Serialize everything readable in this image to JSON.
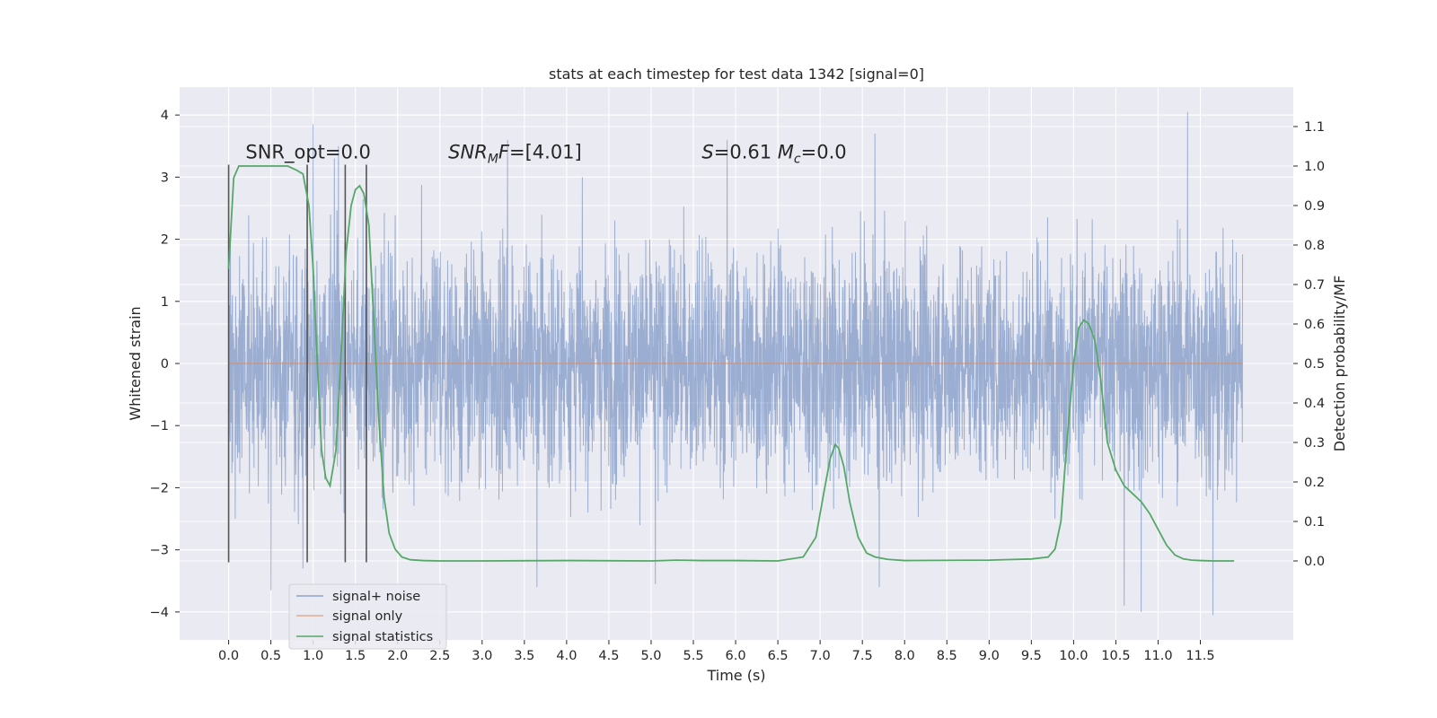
{
  "chart_data": {
    "type": "line",
    "title": "stats at each timestep for test data 1342 [signal=0]",
    "xlabel": "Time (s)",
    "ylabel": "Whitened strain",
    "y2label": "Detection probability/MF",
    "xlim": [
      -0.58,
      12.6
    ],
    "ylim": [
      -4.45,
      4.45
    ],
    "y2lim": [
      -0.2,
      1.2
    ],
    "x_ticks": [
      "0.0",
      "0.5",
      "1.0",
      "1.5",
      "2.0",
      "2.5",
      "3.0",
      "3.5",
      "4.0",
      "4.5",
      "5.0",
      "5.5",
      "6.0",
      "6.5",
      "7.0",
      "7.5",
      "8.0",
      "8.5",
      "9.0",
      "9.5",
      "10.0",
      "10.5",
      "11.0",
      "11.5"
    ],
    "y_ticks": [
      -4,
      -3,
      -2,
      -1,
      0,
      1,
      2,
      3,
      4
    ],
    "y_tick_labels": [
      "−4",
      "−3",
      "−2",
      "−1",
      "0",
      "1",
      "2",
      "3",
      "4"
    ],
    "y2_ticks": [
      0.0,
      0.1,
      0.2,
      0.3,
      0.4,
      0.5,
      0.6,
      0.7,
      0.8,
      0.9,
      1.0,
      1.1
    ],
    "y2_tick_labels": [
      "0.0",
      "0.1",
      "0.2",
      "0.3",
      "0.4",
      "0.5",
      "0.6",
      "0.7",
      "0.8",
      "0.9",
      "1.0",
      "1.1"
    ],
    "grid": true,
    "legend_position": "lower-left",
    "series": [
      {
        "name": "signal+ noise",
        "color": "#4c72b0",
        "axis": "left",
        "x_range": [
          0.0,
          12.0
        ],
        "typical_abs_max": 2.2,
        "peaks": [
          {
            "x": 1.0,
            "y": 3.85
          },
          {
            "x": 1.25,
            "y": 3.3
          },
          {
            "x": 1.3,
            "y": 3.5
          },
          {
            "x": 3.3,
            "y": 3.6
          },
          {
            "x": 5.9,
            "y": 3.6
          },
          {
            "x": 7.65,
            "y": 3.7
          },
          {
            "x": 11.35,
            "y": 4.05
          },
          {
            "x": 11.65,
            "y": 3.3
          },
          {
            "x": 0.5,
            "y": -3.65
          },
          {
            "x": 0.88,
            "y": -3.3
          },
          {
            "x": 3.65,
            "y": -3.6
          },
          {
            "x": 5.05,
            "y": -3.55
          },
          {
            "x": 7.7,
            "y": -3.6
          },
          {
            "x": 10.6,
            "y": -3.9
          },
          {
            "x": 10.8,
            "y": -4.0
          },
          {
            "x": 11.65,
            "y": -4.05
          }
        ]
      },
      {
        "name": "signal only",
        "color": "#dd8452",
        "axis": "left",
        "x": [
          0.0,
          12.0
        ],
        "y": [
          0.0,
          0.0
        ]
      },
      {
        "name": "signal statistics",
        "color": "#55a868",
        "axis": "right",
        "x": [
          0.0,
          0.06,
          0.12,
          0.2,
          0.3,
          0.4,
          0.5,
          0.6,
          0.7,
          0.8,
          0.88,
          0.95,
          1.0,
          1.06,
          1.1,
          1.15,
          1.2,
          1.27,
          1.33,
          1.39,
          1.45,
          1.5,
          1.55,
          1.6,
          1.66,
          1.72,
          1.78,
          1.84,
          1.9,
          1.97,
          2.05,
          2.15,
          2.3,
          2.5,
          3.0,
          4.0,
          5.0,
          5.3,
          5.6,
          6.0,
          6.5,
          6.8,
          6.95,
          7.05,
          7.12,
          7.18,
          7.22,
          7.28,
          7.35,
          7.45,
          7.55,
          7.65,
          7.8,
          8.0,
          9.0,
          9.5,
          9.7,
          9.78,
          9.85,
          9.92,
          10.0,
          10.06,
          10.12,
          10.18,
          10.25,
          10.32,
          10.4,
          10.5,
          10.6,
          10.7,
          10.8,
          10.9,
          11.0,
          11.1,
          11.2,
          11.3,
          11.4,
          11.5,
          11.65,
          11.9
        ],
        "y": [
          0.74,
          0.97,
          1.0,
          1.0,
          1.0,
          1.0,
          1.0,
          1.0,
          1.0,
          0.99,
          0.98,
          0.9,
          0.74,
          0.45,
          0.28,
          0.21,
          0.19,
          0.28,
          0.52,
          0.78,
          0.9,
          0.94,
          0.95,
          0.93,
          0.85,
          0.6,
          0.35,
          0.16,
          0.07,
          0.03,
          0.01,
          0.003,
          0.001,
          0.0,
          0.0,
          0.001,
          0.0,
          0.002,
          0.001,
          0.001,
          0.0,
          0.01,
          0.06,
          0.18,
          0.26,
          0.295,
          0.285,
          0.24,
          0.15,
          0.06,
          0.02,
          0.01,
          0.004,
          0.001,
          0.002,
          0.005,
          0.01,
          0.03,
          0.1,
          0.3,
          0.5,
          0.59,
          0.61,
          0.6,
          0.56,
          0.46,
          0.3,
          0.23,
          0.19,
          0.17,
          0.15,
          0.12,
          0.08,
          0.04,
          0.015,
          0.005,
          0.002,
          0.001,
          0.0,
          0.0
        ]
      }
    ],
    "vertical_markers": [
      0.0,
      0.93,
      1.38,
      1.63
    ],
    "marker_color": "#555555",
    "marker_y_range": [
      -3.2,
      3.2
    ],
    "annotations": [
      {
        "parts": [
          {
            "text": "SNR_opt=0.0"
          }
        ],
        "x": 0.2,
        "y": 3.3
      },
      {
        "parts": [
          {
            "text": "SNR",
            "italic": true
          },
          {
            "text": "M",
            "italic": true,
            "sub": true
          },
          {
            "text": "F",
            "italic": true
          },
          {
            "text": "=[4.01]"
          }
        ],
        "x": 2.6,
        "y": 3.3
      },
      {
        "parts": [
          {
            "text": "S",
            "italic": true
          },
          {
            "text": "=0.61   "
          },
          {
            "text": "M",
            "italic": true
          },
          {
            "text": "c",
            "italic": true,
            "sub": true
          },
          {
            "text": "=0.0"
          }
        ],
        "x": 5.6,
        "y": 3.3
      }
    ]
  }
}
